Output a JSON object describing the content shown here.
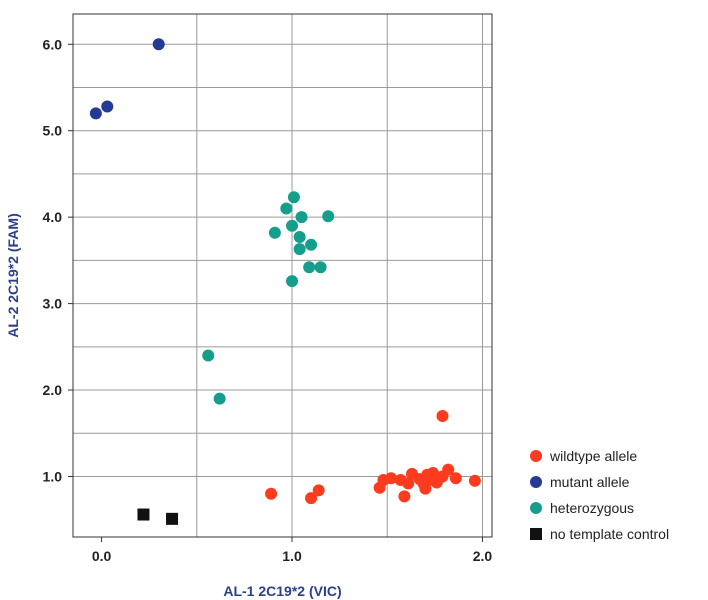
{
  "chart_data": {
    "type": "scatter",
    "title": "",
    "xlabel": "AL-1 2C19*2 (VIC)",
    "ylabel": "AL-2 2C19*2 (FAM)",
    "xlim": [
      -0.15,
      2.05
    ],
    "ylim": [
      0.3,
      6.35
    ],
    "x_ticks": [
      {
        "value": 0.0,
        "label": "0.0"
      },
      {
        "value": 1.0,
        "label": "1.0"
      },
      {
        "value": 2.0,
        "label": "2.0"
      }
    ],
    "y_ticks": [
      {
        "value": 1.0,
        "label": "1.0"
      },
      {
        "value": 2.0,
        "label": "2.0"
      },
      {
        "value": 3.0,
        "label": "3.0"
      },
      {
        "value": 4.0,
        "label": "4.0"
      },
      {
        "value": 5.0,
        "label": "5.0"
      },
      {
        "value": 6.0,
        "label": "6.0"
      }
    ],
    "x_grid": [
      0.5,
      1.0,
      1.5,
      2.0
    ],
    "y_grid": [
      1.0,
      1.5,
      2.0,
      2.5,
      3.0,
      3.5,
      4.0,
      4.5,
      5.0,
      5.5,
      6.0
    ],
    "grid": true,
    "legend_position": "bottom-right",
    "axis_color": "#2b3f8c",
    "series": [
      {
        "name": "wildtype allele",
        "color": "#ff3b1f",
        "marker": "circle",
        "points": [
          [
            0.89,
            0.8
          ],
          [
            1.1,
            0.75
          ],
          [
            1.14,
            0.84
          ],
          [
            1.46,
            0.87
          ],
          [
            1.48,
            0.96
          ],
          [
            1.52,
            0.98
          ],
          [
            1.57,
            0.96
          ],
          [
            1.59,
            0.77
          ],
          [
            1.61,
            0.92
          ],
          [
            1.63,
            1.03
          ],
          [
            1.67,
            0.97
          ],
          [
            1.69,
            0.92
          ],
          [
            1.7,
            0.86
          ],
          [
            1.71,
            1.02
          ],
          [
            1.72,
            0.96
          ],
          [
            1.74,
            1.04
          ],
          [
            1.76,
            0.93
          ],
          [
            1.79,
            1.0
          ],
          [
            1.82,
            1.08
          ],
          [
            1.86,
            0.98
          ],
          [
            1.96,
            0.95
          ],
          [
            1.79,
            1.7
          ]
        ]
      },
      {
        "name": "mutant allele",
        "color": "#243a94",
        "marker": "circle",
        "points": [
          [
            -0.03,
            5.2
          ],
          [
            0.03,
            5.28
          ],
          [
            0.3,
            6.0
          ]
        ]
      },
      {
        "name": "heterozygous",
        "color": "#159e8c",
        "marker": "circle",
        "points": [
          [
            0.56,
            2.4
          ],
          [
            0.62,
            1.9
          ],
          [
            0.91,
            3.82
          ],
          [
            0.97,
            4.1
          ],
          [
            1.0,
            3.9
          ],
          [
            1.01,
            4.23
          ],
          [
            1.04,
            3.77
          ],
          [
            1.05,
            4.0
          ],
          [
            1.04,
            3.63
          ],
          [
            1.1,
            3.68
          ],
          [
            1.09,
            3.42
          ],
          [
            1.15,
            3.42
          ],
          [
            1.19,
            4.01
          ],
          [
            1.0,
            3.26
          ]
        ]
      },
      {
        "name": "no template control",
        "color": "#111111",
        "marker": "square",
        "points": [
          [
            0.22,
            0.56
          ],
          [
            0.37,
            0.51
          ]
        ]
      }
    ]
  }
}
